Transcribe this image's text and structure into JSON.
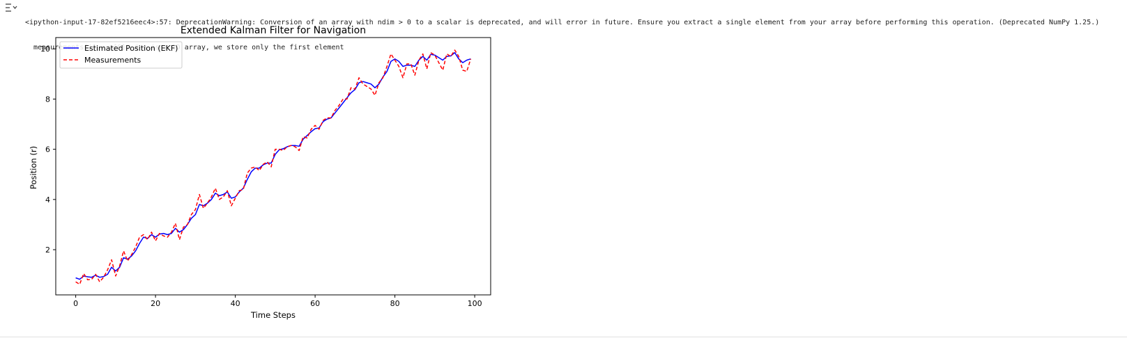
{
  "cell_output": {
    "icon": "output-toggle-icon",
    "warning_line1": "<ipython-input-17-82ef5216eec4>:57: DeprecationWarning: Conversion of an array with ndim > 0 to a scalar is deprecated, and will error in future. Ensure you extract a single element from your array before performing this operation. (Deprecated NumPy 1.25.)",
    "warning_line2": "measurements[i] = z[0]  # z is a 1D array, we store only the first element"
  },
  "chart_data": {
    "type": "line",
    "title": "Extended Kalman Filter for Navigation",
    "xlabel": "Time Steps",
    "ylabel": "Position (r)",
    "xlim": [
      -5,
      104
    ],
    "ylim": [
      0.2,
      10.45
    ],
    "xticks": [
      0,
      20,
      40,
      60,
      80,
      100
    ],
    "yticks": [
      2,
      4,
      6,
      8,
      10
    ],
    "grid": false,
    "legend_position": "upper left",
    "x": [
      0,
      1,
      2,
      3,
      4,
      5,
      6,
      7,
      8,
      9,
      10,
      11,
      12,
      13,
      14,
      15,
      16,
      17,
      18,
      19,
      20,
      21,
      22,
      23,
      24,
      25,
      26,
      27,
      28,
      29,
      30,
      31,
      32,
      33,
      34,
      35,
      36,
      37,
      38,
      39,
      40,
      41,
      42,
      43,
      44,
      45,
      46,
      47,
      48,
      49,
      50,
      51,
      52,
      53,
      54,
      55,
      56,
      57,
      58,
      59,
      60,
      61,
      62,
      63,
      64,
      65,
      66,
      67,
      68,
      69,
      70,
      71,
      72,
      73,
      74,
      75,
      76,
      77,
      78,
      79,
      80,
      81,
      82,
      83,
      84,
      85,
      86,
      87,
      88,
      89,
      90,
      91,
      92,
      93,
      94,
      95,
      96,
      97,
      98,
      99
    ],
    "series": [
      {
        "name": "Estimated Position (EKF)",
        "color": "#0000ff",
        "style": "solid",
        "values": [
          0.88,
          0.82,
          0.95,
          0.92,
          0.9,
          0.98,
          0.9,
          0.93,
          1.02,
          1.3,
          1.15,
          1.3,
          1.68,
          1.62,
          1.75,
          1.95,
          2.25,
          2.5,
          2.45,
          2.6,
          2.5,
          2.62,
          2.65,
          2.6,
          2.65,
          2.85,
          2.7,
          2.8,
          3.0,
          3.25,
          3.4,
          3.8,
          3.75,
          3.85,
          4.0,
          4.25,
          4.15,
          4.2,
          4.3,
          4.05,
          4.1,
          4.3,
          4.45,
          4.8,
          5.1,
          5.25,
          5.25,
          5.38,
          5.45,
          5.45,
          5.8,
          5.98,
          6.02,
          6.1,
          6.15,
          6.15,
          6.12,
          6.4,
          6.55,
          6.7,
          6.82,
          6.85,
          7.1,
          7.2,
          7.25,
          7.45,
          7.65,
          7.85,
          8.05,
          8.25,
          8.38,
          8.65,
          8.7,
          8.65,
          8.6,
          8.45,
          8.6,
          8.88,
          9.1,
          9.5,
          9.6,
          9.5,
          9.3,
          9.35,
          9.35,
          9.3,
          9.55,
          9.7,
          9.55,
          9.78,
          9.75,
          9.65,
          9.55,
          9.7,
          9.72,
          9.85,
          9.6,
          9.45,
          9.55,
          9.6
        ]
      },
      {
        "name": "Measurements",
        "color": "#ff0000",
        "style": "dashed",
        "values": [
          0.72,
          0.62,
          1.05,
          0.8,
          0.82,
          1.02,
          0.72,
          0.9,
          1.2,
          1.6,
          0.95,
          1.35,
          1.95,
          1.55,
          1.8,
          2.1,
          2.5,
          2.6,
          2.4,
          2.7,
          2.35,
          2.65,
          2.55,
          2.5,
          2.7,
          3.05,
          2.4,
          2.9,
          3.0,
          3.4,
          3.6,
          4.2,
          3.65,
          3.85,
          4.1,
          4.45,
          4.0,
          4.1,
          4.35,
          3.75,
          4.05,
          4.35,
          4.4,
          5.05,
          5.25,
          5.3,
          5.15,
          5.4,
          5.5,
          5.3,
          6.0,
          6.0,
          5.95,
          6.1,
          6.15,
          6.1,
          5.95,
          6.5,
          6.45,
          6.8,
          6.95,
          6.8,
          7.15,
          7.25,
          7.25,
          7.55,
          7.75,
          8.0,
          8.0,
          8.45,
          8.4,
          8.85,
          8.6,
          8.5,
          8.4,
          8.15,
          8.65,
          8.85,
          9.3,
          9.8,
          9.55,
          9.3,
          8.85,
          9.4,
          9.4,
          8.95,
          9.55,
          9.8,
          9.2,
          9.85,
          9.75,
          9.45,
          9.15,
          9.8,
          9.7,
          9.95,
          9.7,
          9.15,
          9.1,
          9.6
        ]
      }
    ]
  }
}
